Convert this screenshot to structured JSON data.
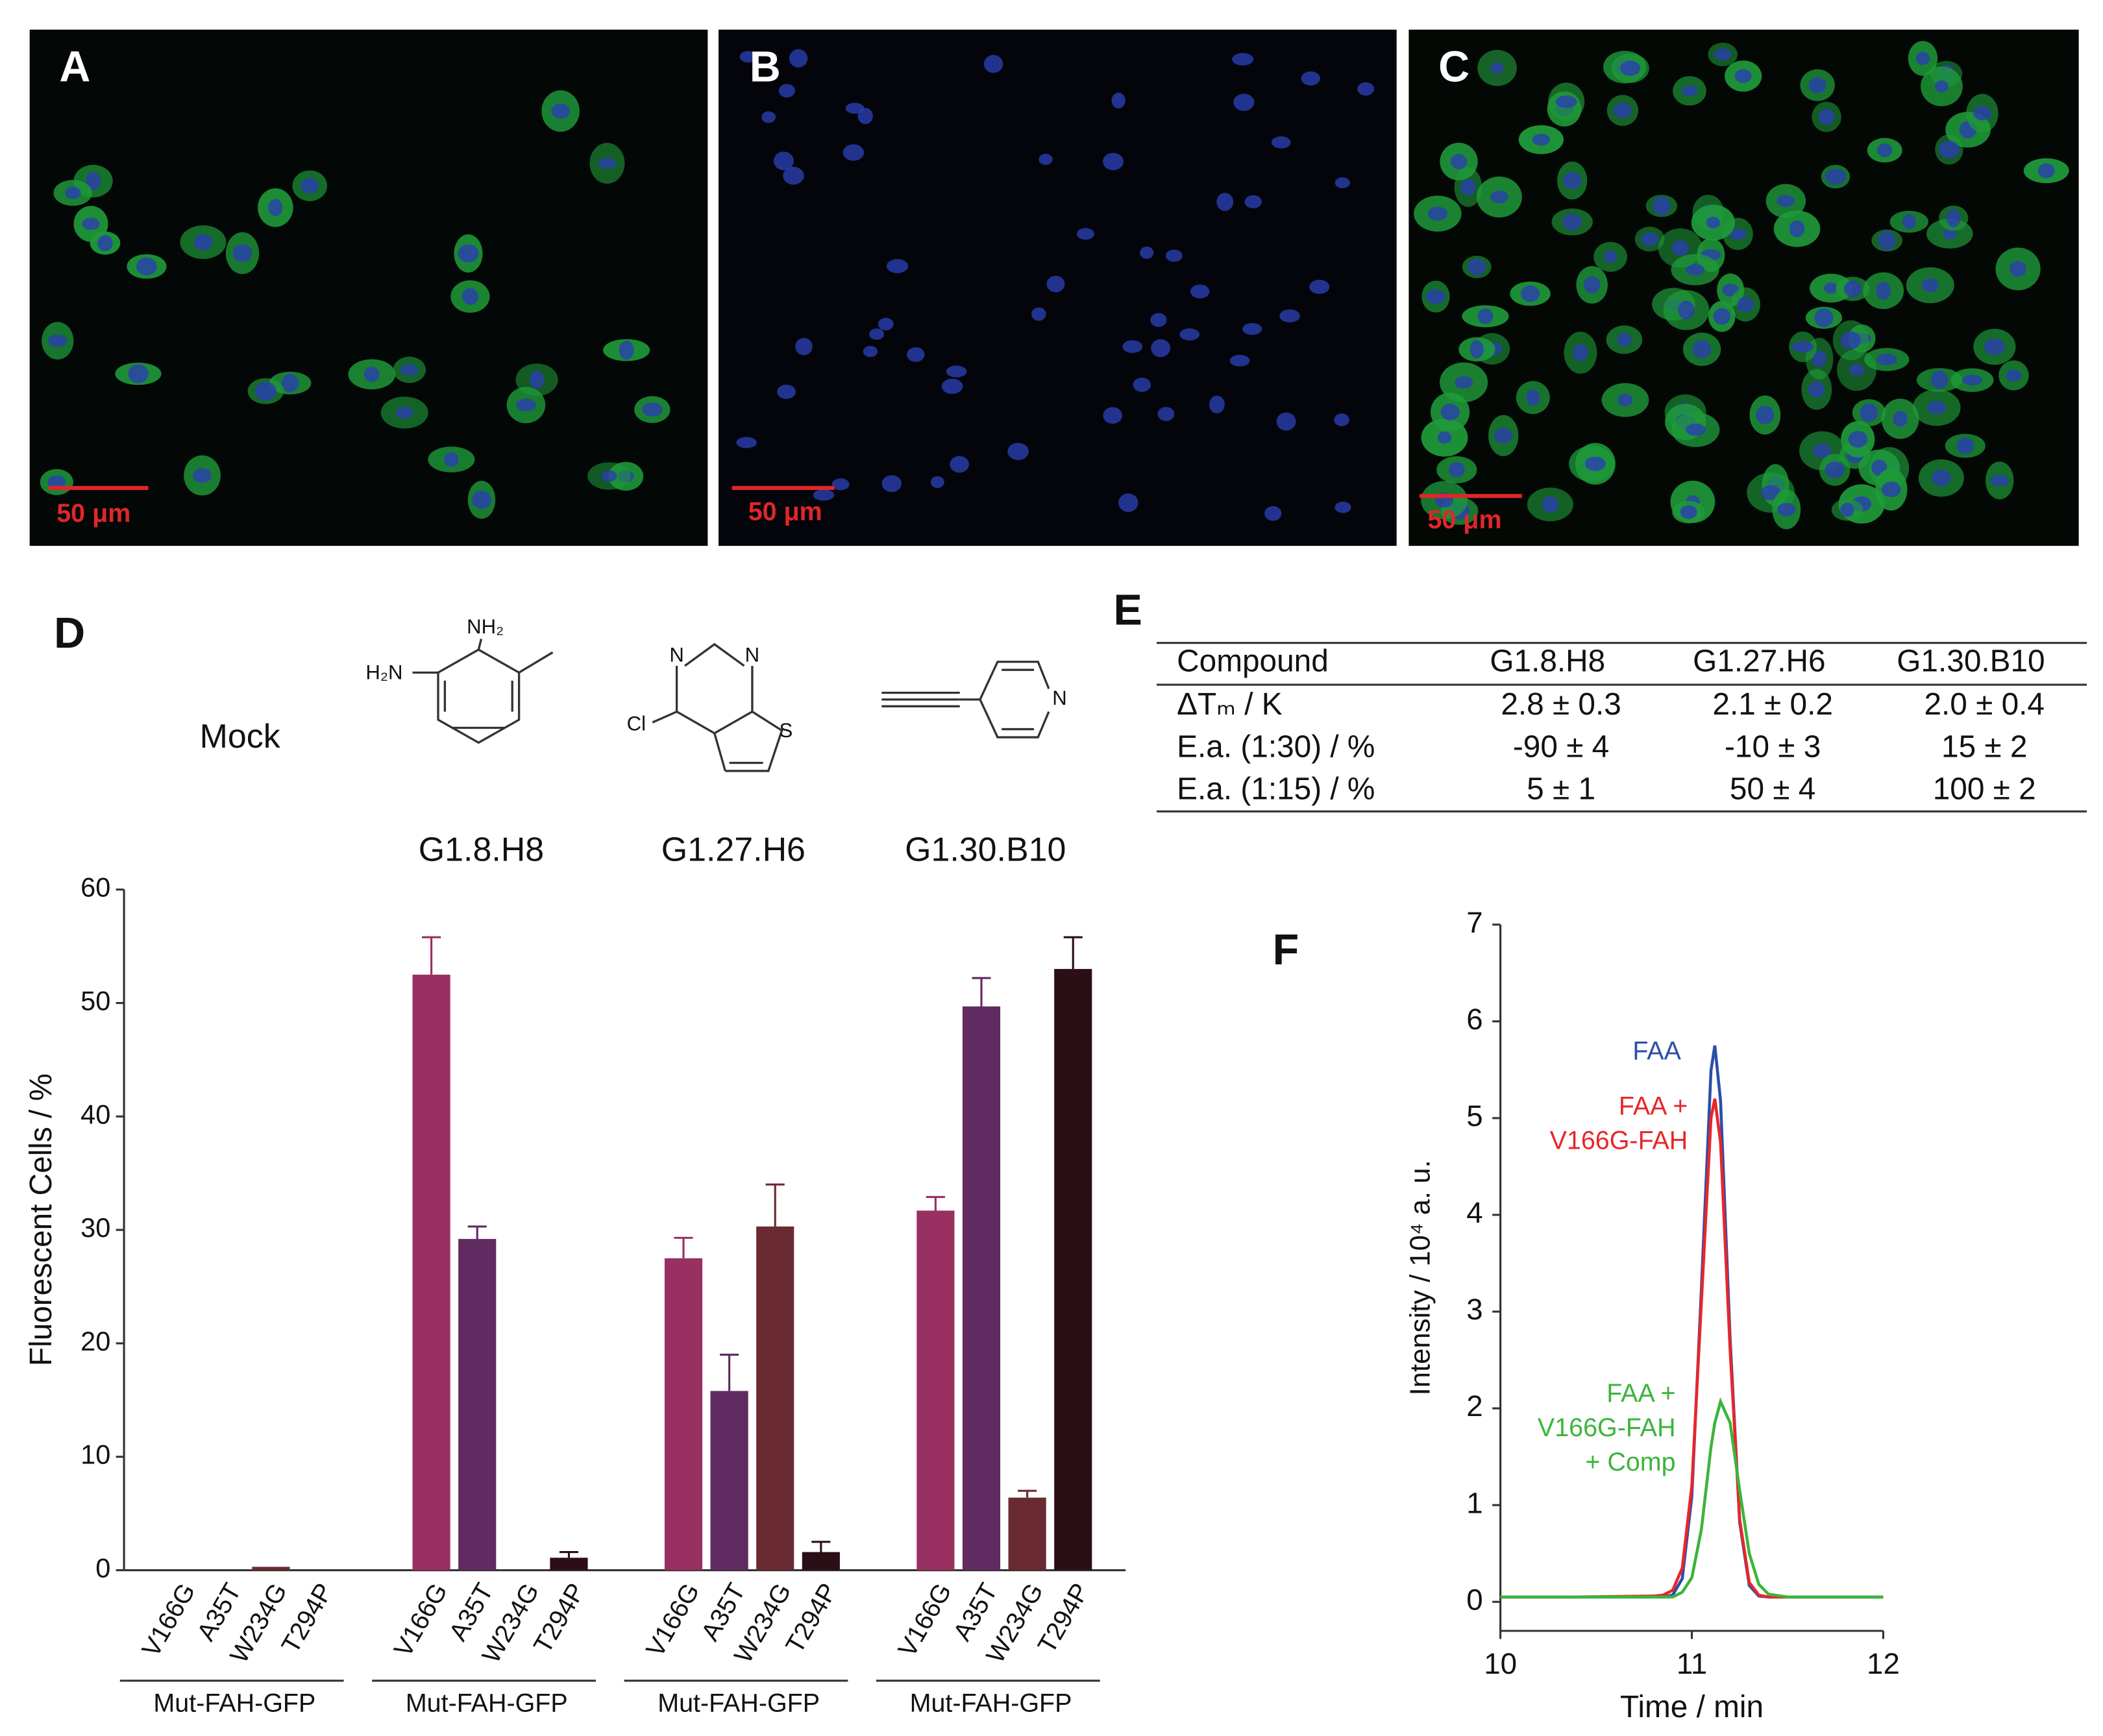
{
  "panels": {
    "a": "A",
    "b": "B",
    "c": "C",
    "d": "D",
    "e": "E",
    "f": "F"
  },
  "scale_bars": [
    "50 μm",
    "50 μm",
    "50 μm"
  ],
  "structures": [
    {
      "atoms": [
        "NH₂",
        "H₂N"
      ]
    },
    {
      "atoms": [
        "N",
        "N",
        "Cl",
        "S"
      ]
    },
    {
      "atoms": [
        "N"
      ]
    }
  ],
  "chart_data": [
    {
      "type": "bar",
      "y_label": "Fluorescent Cells / %",
      "categories": [
        "Mock",
        "G1.8.H8",
        "G1.27.H6",
        "G1.30.B10"
      ],
      "group_label": "Mut-FAH-GFP",
      "series": [
        {
          "name": "V166G",
          "color": "#983062",
          "values": [
            0,
            52.5,
            27.5,
            31.7
          ],
          "errors": [
            0,
            3.3,
            1.8,
            1.2
          ]
        },
        {
          "name": "A35T",
          "color": "#5f2b60",
          "values": [
            0,
            29.2,
            15.8,
            49.7
          ],
          "errors": [
            0,
            1.1,
            3.2,
            2.5
          ]
        },
        {
          "name": "W234G",
          "color": "#6a2a31",
          "values": [
            0.3,
            0,
            30.3,
            6.4
          ],
          "errors": [
            0,
            0,
            3.7,
            0.6
          ]
        },
        {
          "name": "T294P",
          "color": "#2b0e16",
          "values": [
            0,
            1.1,
            1.6,
            53.0
          ],
          "errors": [
            0,
            0.5,
            0.9,
            2.8
          ]
        }
      ],
      "ylim": [
        0,
        60
      ],
      "yticks": [
        0,
        10,
        20,
        30,
        40,
        50,
        60
      ]
    },
    {
      "type": "line",
      "x_label": "Time / min",
      "y_label": "Intensity / 10⁴ a. u.",
      "x": [
        10,
        10.4,
        10.8,
        10.85,
        10.9,
        10.95,
        11.0,
        11.05,
        11.1,
        11.12,
        11.15,
        11.2,
        11.25,
        11.3,
        11.35,
        11.4,
        11.5,
        11.8,
        12
      ],
      "series": [
        {
          "name": [
            "FAA"
          ],
          "color": "#2c4ea8",
          "values": [
            0.05,
            0.05,
            0.05,
            0.05,
            0.07,
            0.24,
            1.09,
            3.24,
            5.49,
            5.75,
            5.18,
            2.72,
            0.82,
            0.17,
            0.06,
            0.05,
            0.05,
            0.05,
            0.05
          ]
        },
        {
          "name": [
            "FAA +",
            "V166G-FAH"
          ],
          "color": "#e8262a",
          "values": [
            0.05,
            0.05,
            0.06,
            0.07,
            0.12,
            0.35,
            1.2,
            3.1,
            5.0,
            5.2,
            4.75,
            2.6,
            0.85,
            0.2,
            0.07,
            0.05,
            0.05,
            0.05,
            0.05
          ]
        },
        {
          "name": [
            "FAA +",
            "V166G-FAH",
            "+ Comp"
          ],
          "color": "#3cb43c",
          "values": [
            0.05,
            0.05,
            0.05,
            0.05,
            0.05,
            0.1,
            0.25,
            0.75,
            1.6,
            1.85,
            2.07,
            1.85,
            1.15,
            0.5,
            0.18,
            0.08,
            0.05,
            0.05,
            0.05
          ]
        }
      ],
      "xlim": [
        10,
        12
      ],
      "xticks": [
        10,
        11,
        12
      ],
      "ylim": [
        -0.3,
        7
      ],
      "yticks": [
        0,
        1,
        2,
        3,
        4,
        5,
        6,
        7
      ]
    }
  ],
  "table": {
    "header": [
      "Compound",
      "G1.8.H8",
      "G1.27.H6",
      "G1.30.B10"
    ],
    "rows": [
      [
        "ΔTₘ / K",
        "2.8 ± 0.3",
        "2.1 ± 0.2",
        "2.0 ± 0.4"
      ],
      [
        "E.a. (1:30) / %",
        "-90 ± 4",
        "-10 ± 3",
        "15 ± 2"
      ],
      [
        "E.a. (1:15) / %",
        "5 ± 1",
        "50 ± 4",
        "100 ± 2"
      ]
    ]
  }
}
